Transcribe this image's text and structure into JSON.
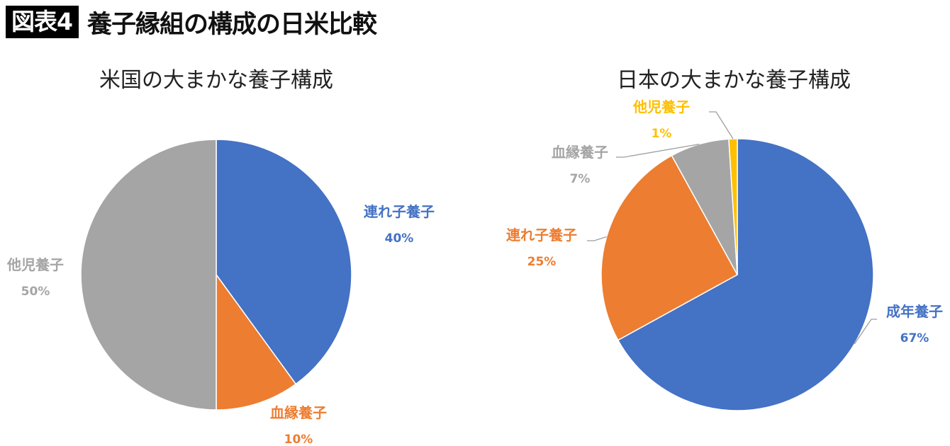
{
  "header": {
    "badge": "図表4",
    "title": "養子縁組の構成の日米比較"
  },
  "chart_data": [
    {
      "type": "pie",
      "title": "米国の大まかな養子構成",
      "slices": [
        {
          "label": "連れ子養子",
          "value": 40,
          "value_label": "40%",
          "color": "#4472C4"
        },
        {
          "label": "血縁養子",
          "value": 10,
          "value_label": "10%",
          "color": "#ED7D31"
        },
        {
          "label": "他児養子",
          "value": 50,
          "value_label": "50%",
          "color": "#A5A5A5"
        }
      ]
    },
    {
      "type": "pie",
      "title": "日本の大まかな養子構成",
      "slices": [
        {
          "label": "成年養子",
          "value": 67,
          "value_label": "67%",
          "color": "#4472C4"
        },
        {
          "label": "連れ子養子",
          "value": 25,
          "value_label": "25%",
          "color": "#ED7D31"
        },
        {
          "label": "血縁養子",
          "value": 7,
          "value_label": "7%",
          "color": "#A5A5A5"
        },
        {
          "label": "他児養子",
          "value": 1,
          "value_label": "1%",
          "color": "#FFC000"
        }
      ]
    }
  ]
}
